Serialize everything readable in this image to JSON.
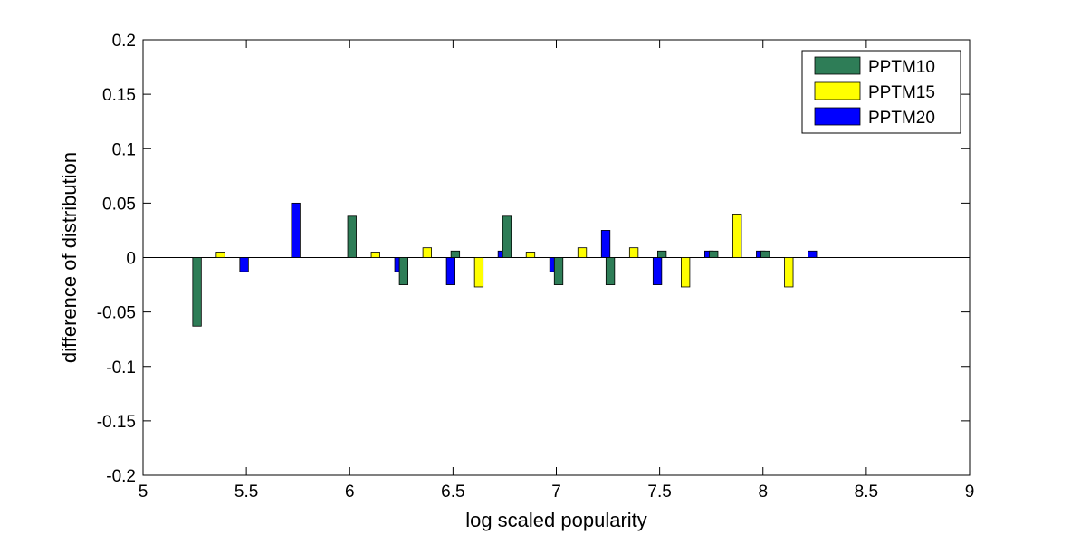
{
  "chart_data": {
    "type": "bar",
    "title": "",
    "xlabel": "log scaled popularity",
    "ylabel": "difference of distribution",
    "xlim": [
      5,
      9
    ],
    "ylim": [
      -0.2,
      0.2
    ],
    "xticks": [
      "5",
      "5.5",
      "6",
      "6.5",
      "7",
      "7.5",
      "8",
      "8.5",
      "9"
    ],
    "yticks": [
      "-0.2",
      "-0.15",
      "-0.1",
      "-0.05",
      "0",
      "0.05",
      "0.1",
      "0.15",
      "0.2"
    ],
    "x": [
      5.375,
      5.625,
      6.125,
      6.375,
      6.625,
      6.875,
      7.125,
      7.375,
      7.625,
      7.875,
      8.125
    ],
    "series": [
      {
        "name": "PPTM10",
        "color": "#2e7d57",
        "values": [
          -0.063,
          0,
          0.038,
          -0.025,
          0.006,
          0.038,
          -0.025,
          -0.025,
          0.006,
          0.006,
          0.006
        ]
      },
      {
        "name": "PPTM15",
        "color": "#ffff00",
        "values": [
          0.005,
          0,
          0.005,
          0.009,
          -0.027,
          0.005,
          0.009,
          0.009,
          -0.027,
          0.04,
          -0.027
        ]
      },
      {
        "name": "PPTM20",
        "color": "#0000ff",
        "values": [
          -0.013,
          0.05,
          -0.013,
          -0.025,
          0.006,
          -0.013,
          0.025,
          -0.025,
          0.006,
          0.006,
          0.006
        ]
      }
    ],
    "grid": false,
    "legend": "top-right"
  }
}
